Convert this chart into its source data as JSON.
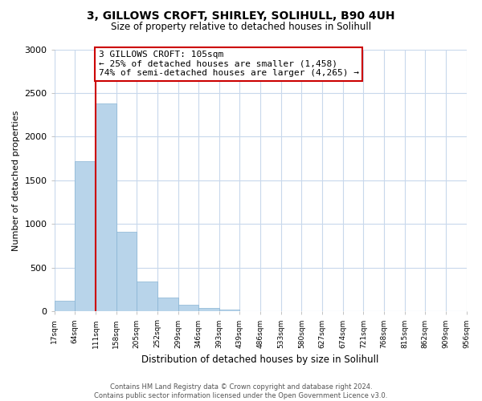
{
  "title": "3, GILLOWS CROFT, SHIRLEY, SOLIHULL, B90 4UH",
  "subtitle": "Size of property relative to detached houses in Solihull",
  "xlabel": "Distribution of detached houses by size in Solihull",
  "ylabel": "Number of detached properties",
  "bar_values": [
    120,
    1720,
    2380,
    910,
    345,
    155,
    80,
    40,
    25,
    0,
    0,
    0,
    0,
    0,
    0,
    0,
    0,
    0,
    0,
    0
  ],
  "bin_labels": [
    "17sqm",
    "64sqm",
    "111sqm",
    "158sqm",
    "205sqm",
    "252sqm",
    "299sqm",
    "346sqm",
    "393sqm",
    "439sqm",
    "486sqm",
    "533sqm",
    "580sqm",
    "627sqm",
    "674sqm",
    "721sqm",
    "768sqm",
    "815sqm",
    "862sqm",
    "909sqm",
    "956sqm"
  ],
  "bar_color": "#b8d4ea",
  "bar_edge_color": "#88b4d4",
  "vline_x_idx": 2,
  "vline_color": "#cc0000",
  "annotation_text": "3 GILLOWS CROFT: 105sqm\n← 25% of detached houses are smaller (1,458)\n74% of semi-detached houses are larger (4,265) →",
  "annotation_box_color": "#ffffff",
  "annotation_box_edge_color": "#cc0000",
  "ylim": [
    0,
    3000
  ],
  "yticks": [
    0,
    500,
    1000,
    1500,
    2000,
    2500,
    3000
  ],
  "footnote": "Contains HM Land Registry data © Crown copyright and database right 2024.\nContains public sector information licensed under the Open Government Licence v3.0.",
  "bg_color": "#ffffff",
  "grid_color": "#c8d8ec"
}
